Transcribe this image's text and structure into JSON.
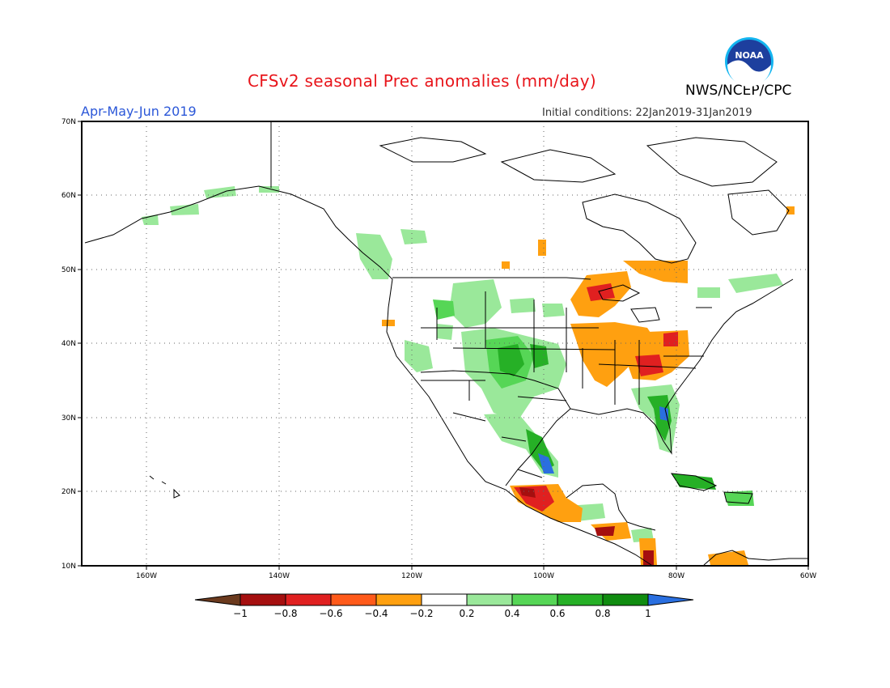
{
  "title": "CFSv2 seasonal Prec anomalies (mm/day)",
  "agency": "NWS/NCEP/CPC",
  "logo_text": "NOAA",
  "season": "Apr-May-Jun 2019",
  "initial_conditions": "Initial conditions: 22Jan2019-31Jan2019",
  "lat_labels": [
    "70N",
    "60N",
    "50N",
    "40N",
    "30N",
    "20N",
    "10N"
  ],
  "lon_labels": [
    "160W",
    "140W",
    "120W",
    "100W",
    "80W",
    "60W"
  ],
  "colorbar": {
    "labels": [
      "−1",
      "−0.8",
      "−0.6",
      "−0.4",
      "−0.2",
      "0.2",
      "0.4",
      "0.6",
      "0.8",
      "1"
    ],
    "colors": [
      "#6b3a1e",
      "#a50f0f",
      "#e02020",
      "#ff5a1a",
      "#ffa010",
      "#ffffff",
      "#9ae89a",
      "#56d656",
      "#26b026",
      "#108c10",
      "#2a6fe0"
    ]
  },
  "colors": {
    "title": "#e8151b",
    "season": "#2b57d8",
    "coastline": "#000000",
    "grid": "#666666"
  }
}
